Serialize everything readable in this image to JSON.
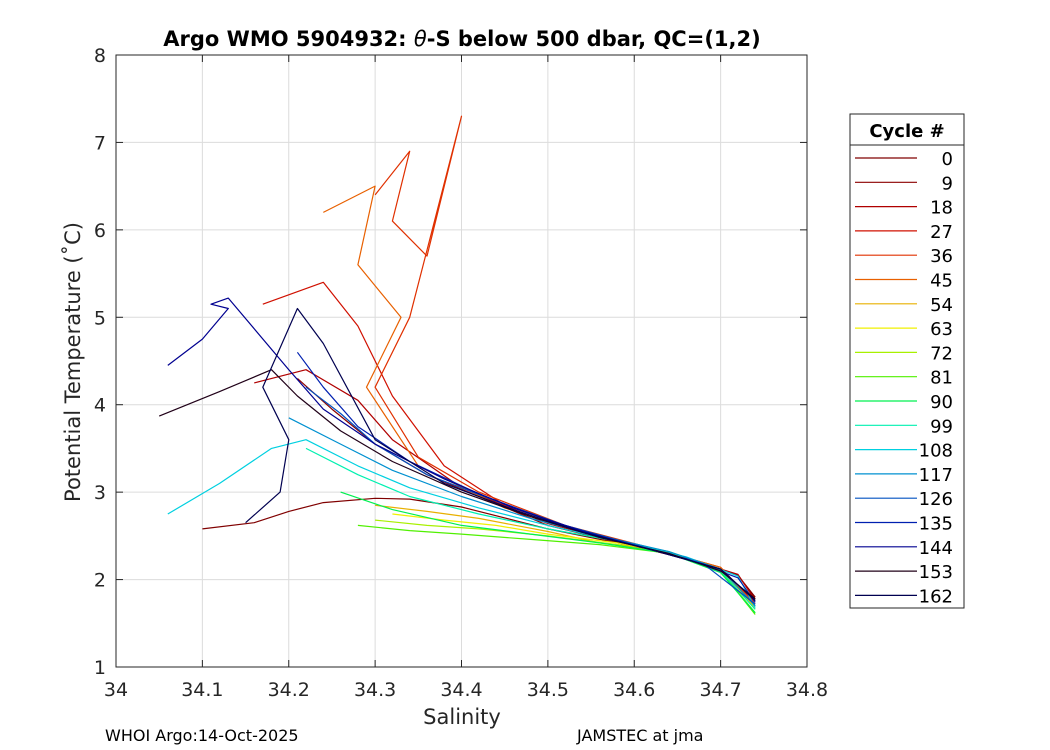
{
  "chart_data": {
    "type": "line",
    "title_prefix": "Argo WMO 5904932: ",
    "title_theta": "θ",
    "title_suffix": "-S below 500 dbar,  QC=(1,2)",
    "xlabel": "Salinity",
    "ylabel": "Potential Temperature (˚C)",
    "xlim": [
      34.0,
      34.8
    ],
    "ylim": [
      1,
      8
    ],
    "x_ticks": [
      "34",
      "34.1",
      "34.2",
      "34.3",
      "34.4",
      "34.5",
      "34.6",
      "34.7",
      "34.8"
    ],
    "y_ticks": [
      "1",
      "2",
      "3",
      "4",
      "5",
      "6",
      "7",
      "8"
    ],
    "grid": true,
    "legend_title": "Cycle #",
    "legend_position": "right",
    "series": [
      {
        "name": "0",
        "color": "#800000",
        "x": [
          34.1,
          34.16,
          34.2,
          34.24,
          34.3,
          34.34,
          34.4,
          34.5,
          34.6,
          34.66,
          34.72,
          34.74
        ],
        "y": [
          2.58,
          2.65,
          2.78,
          2.88,
          2.93,
          2.92,
          2.83,
          2.58,
          2.38,
          2.24,
          2.05,
          1.8
        ]
      },
      {
        "name": "9",
        "color": "#8c0000",
        "x": [
          34.21,
          34.25,
          34.3,
          34.36,
          34.42,
          34.5,
          34.6,
          34.66,
          34.72,
          34.74
        ],
        "y": [
          4.3,
          3.95,
          3.55,
          3.2,
          2.95,
          2.62,
          2.38,
          2.25,
          2.05,
          1.78
        ]
      },
      {
        "name": "18",
        "color": "#b00000",
        "x": [
          34.16,
          34.22,
          34.28,
          34.32,
          34.4,
          34.5,
          34.6,
          34.66,
          34.72,
          34.74
        ],
        "y": [
          4.25,
          4.4,
          4.05,
          3.6,
          3.05,
          2.64,
          2.38,
          2.24,
          2.06,
          1.76
        ]
      },
      {
        "name": "27",
        "color": "#d01000",
        "x": [
          34.17,
          34.24,
          34.28,
          34.32,
          34.38,
          34.45,
          34.55,
          34.62,
          34.7,
          34.74
        ],
        "y": [
          5.15,
          5.4,
          4.9,
          4.1,
          3.3,
          2.85,
          2.52,
          2.34,
          2.12,
          1.74
        ]
      },
      {
        "name": "36",
        "color": "#e03000",
        "x": [
          34.3,
          34.34,
          34.32,
          34.36,
          34.4,
          34.34,
          34.3,
          34.35,
          34.42,
          34.52,
          34.62,
          34.7,
          34.74
        ],
        "y": [
          6.4,
          6.9,
          6.1,
          5.7,
          7.3,
          5.0,
          4.2,
          3.4,
          3.0,
          2.62,
          2.36,
          2.14,
          1.72
        ]
      },
      {
        "name": "45",
        "color": "#e86000",
        "x": [
          34.24,
          34.3,
          34.28,
          34.33,
          34.29,
          34.35,
          34.45,
          34.55,
          34.62,
          34.7,
          34.74
        ],
        "y": [
          6.2,
          6.5,
          5.6,
          5.0,
          4.2,
          3.3,
          2.82,
          2.52,
          2.36,
          2.14,
          1.7
        ]
      },
      {
        "name": "54",
        "color": "#e8b000",
        "x": [
          34.3,
          34.36,
          34.42,
          34.5,
          34.56,
          34.62,
          34.7,
          34.74
        ],
        "y": [
          2.85,
          2.78,
          2.7,
          2.55,
          2.42,
          2.36,
          2.12,
          1.68
        ]
      },
      {
        "name": "63",
        "color": "#f0f000",
        "x": [
          34.32,
          34.38,
          34.44,
          34.5,
          34.58,
          34.64,
          34.7,
          34.74
        ],
        "y": [
          2.75,
          2.68,
          2.62,
          2.52,
          2.42,
          2.32,
          2.12,
          1.66
        ]
      },
      {
        "name": "72",
        "color": "#a8f000",
        "x": [
          34.3,
          34.36,
          34.42,
          34.5,
          34.58,
          34.64,
          34.7,
          34.74
        ],
        "y": [
          2.68,
          2.62,
          2.58,
          2.5,
          2.4,
          2.3,
          2.1,
          1.62
        ]
      },
      {
        "name": "81",
        "color": "#50f000",
        "x": [
          34.28,
          34.34,
          34.4,
          34.48,
          34.56,
          34.64,
          34.7,
          34.74
        ],
        "y": [
          2.62,
          2.56,
          2.52,
          2.46,
          2.4,
          2.3,
          2.1,
          1.6
        ]
      },
      {
        "name": "90",
        "color": "#00f050",
        "x": [
          34.26,
          34.32,
          34.4,
          34.48,
          34.56,
          34.64,
          34.7,
          34.74
        ],
        "y": [
          3.0,
          2.8,
          2.62,
          2.52,
          2.42,
          2.3,
          2.08,
          1.62
        ]
      },
      {
        "name": "99",
        "color": "#00f0b0",
        "x": [
          34.22,
          34.28,
          34.34,
          34.42,
          34.5,
          34.58,
          34.64,
          34.7,
          34.74
        ],
        "y": [
          3.5,
          3.2,
          2.95,
          2.75,
          2.58,
          2.44,
          2.32,
          2.1,
          1.66
        ]
      },
      {
        "name": "108",
        "color": "#00d0e0",
        "x": [
          34.06,
          34.12,
          34.18,
          34.22,
          34.28,
          34.34,
          34.42,
          34.5,
          34.58,
          34.66,
          34.72,
          34.74
        ],
        "y": [
          2.75,
          3.1,
          3.5,
          3.6,
          3.3,
          3.05,
          2.82,
          2.62,
          2.44,
          2.26,
          2.04,
          1.68
        ]
      },
      {
        "name": "117",
        "color": "#0090d0",
        "x": [
          34.2,
          34.26,
          34.32,
          34.4,
          34.48,
          34.56,
          34.64,
          34.7,
          34.74
        ],
        "y": [
          3.85,
          3.55,
          3.25,
          2.95,
          2.7,
          2.5,
          2.32,
          2.12,
          1.7
        ]
      },
      {
        "name": "126",
        "color": "#0050c0",
        "x": [
          34.22,
          34.26,
          34.3,
          34.36,
          34.44,
          34.52,
          34.6,
          34.68,
          34.74
        ],
        "y": [
          4.2,
          3.9,
          3.55,
          3.2,
          2.9,
          2.62,
          2.4,
          2.18,
          1.72
        ]
      },
      {
        "name": "135",
        "color": "#0020b0",
        "x": [
          34.21,
          34.24,
          34.28,
          34.34,
          34.42,
          34.5,
          34.58,
          34.66,
          34.72,
          34.74
        ],
        "y": [
          4.6,
          4.2,
          3.75,
          3.35,
          2.98,
          2.68,
          2.44,
          2.24,
          2.02,
          1.74
        ]
      },
      {
        "name": "144",
        "color": "#000090",
        "x": [
          34.06,
          34.1,
          34.13,
          34.11,
          34.13,
          34.2,
          34.24,
          34.3,
          34.38,
          34.46,
          34.54,
          34.62,
          34.7,
          34.74
        ],
        "y": [
          4.45,
          4.75,
          5.1,
          5.15,
          5.22,
          4.4,
          3.95,
          3.55,
          3.15,
          2.82,
          2.55,
          2.34,
          2.12,
          1.76
        ]
      },
      {
        "name": "153",
        "color": "#200018",
        "x": [
          34.05,
          34.12,
          34.18,
          34.21,
          34.26,
          34.32,
          34.4,
          34.48,
          34.56,
          34.64,
          34.7,
          34.74
        ],
        "y": [
          3.87,
          4.15,
          4.4,
          4.1,
          3.7,
          3.35,
          3.0,
          2.72,
          2.48,
          2.3,
          2.1,
          1.78
        ]
      },
      {
        "name": "162",
        "color": "#000050",
        "x": [
          34.15,
          34.19,
          34.2,
          34.17,
          34.21,
          34.24,
          34.3,
          34.38,
          34.46,
          34.54,
          34.62,
          34.7,
          34.74
        ],
        "y": [
          2.65,
          3.0,
          3.6,
          4.2,
          5.1,
          4.7,
          3.6,
          3.1,
          2.8,
          2.54,
          2.34,
          2.12,
          1.76
        ]
      }
    ]
  },
  "footer": {
    "left": "WHOI Argo:14-Oct-2025",
    "right": "JAMSTEC at jma"
  }
}
